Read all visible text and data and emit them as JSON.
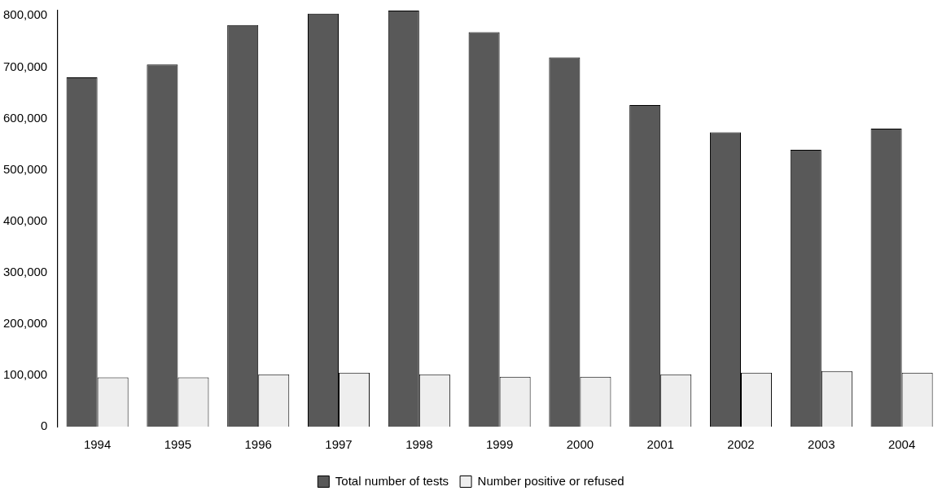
{
  "chart_data": {
    "type": "bar",
    "categories": [
      "1994",
      "1995",
      "1996",
      "1997",
      "1998",
      "1999",
      "2000",
      "2001",
      "2002",
      "2003",
      "2004"
    ],
    "series": [
      {
        "name": "Total number of tests",
        "color": "#595959",
        "values": [
          680000,
          705000,
          782000,
          804000,
          810000,
          768000,
          719000,
          626000,
          573000,
          539000,
          580000
        ]
      },
      {
        "name": "Number positive or refused",
        "color": "#eeeeee",
        "values": [
          96000,
          96000,
          102000,
          105000,
          102000,
          97000,
          97000,
          102000,
          105000,
          108000,
          105000
        ]
      }
    ],
    "ylim": [
      0,
      810000
    ],
    "yticks": [
      {
        "value": 0,
        "label": "0"
      },
      {
        "value": 100000,
        "label": "100,000"
      },
      {
        "value": 200000,
        "label": "200,000"
      },
      {
        "value": 300000,
        "label": "300,000"
      },
      {
        "value": 400000,
        "label": "400,000"
      },
      {
        "value": 500000,
        "label": "500,000"
      },
      {
        "value": 600000,
        "label": "600,000"
      },
      {
        "value": 700000,
        "label": "700,000"
      },
      {
        "value": 800000,
        "label": "800,000"
      }
    ],
    "grid": false,
    "legend": "bottom"
  }
}
